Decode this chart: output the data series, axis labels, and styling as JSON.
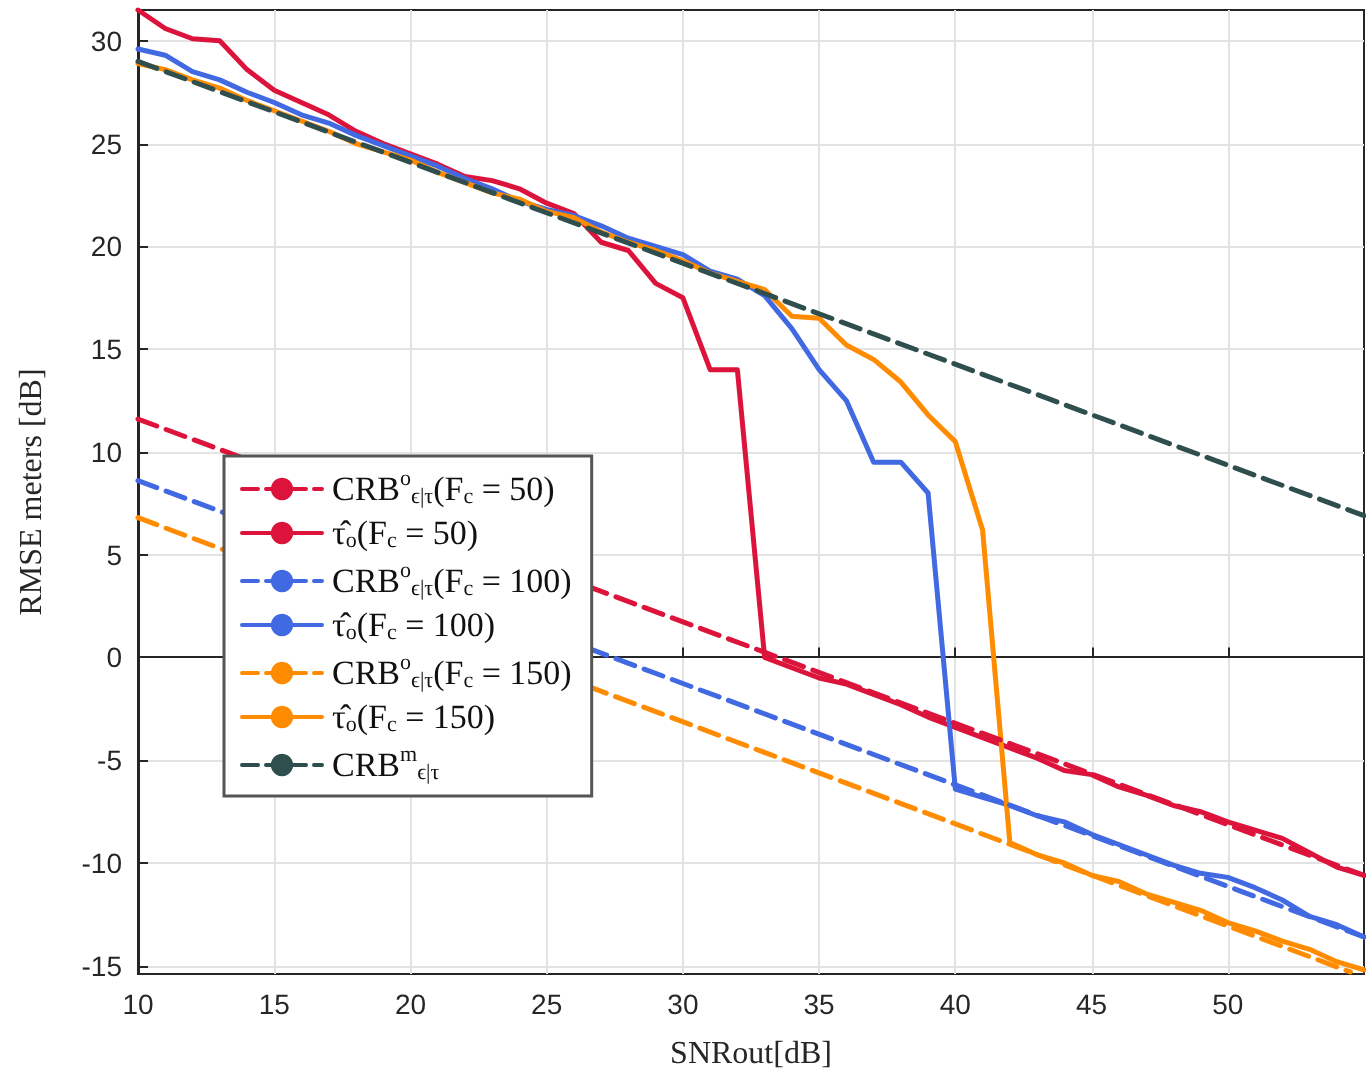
{
  "chart_data": {
    "type": "line",
    "xlabel": "SNRout[dB]",
    "ylabel": "RMSE meters [dB]",
    "xlim": [
      10,
      55
    ],
    "xticks": [
      10,
      15,
      20,
      25,
      30,
      35,
      40,
      45,
      50
    ],
    "ylim": [
      -15.4,
      31.5
    ],
    "yticks": [
      -15,
      -10,
      -5,
      0,
      5,
      10,
      15,
      20,
      25,
      30
    ],
    "grid": true,
    "legend": "left",
    "marker": "none",
    "x": [
      10,
      11,
      12,
      13,
      14,
      15,
      16,
      17,
      18,
      19,
      20,
      21,
      22,
      23,
      24,
      25,
      26,
      27,
      28,
      29,
      30,
      31,
      32,
      33,
      34,
      35,
      36,
      37,
      38,
      39,
      40,
      41,
      42,
      43,
      44,
      45,
      46,
      47,
      48,
      49,
      50,
      51,
      52,
      53,
      54,
      55
    ],
    "series": [
      {
        "name": "CRB$^{o}$$_{ϵ|τ}$(F$_{c}$ = 50)",
        "color": "#dc143c",
        "line_style": "dashed",
        "x": [
          10,
          55
        ],
        "values": [
          11.6,
          -10.6
        ]
      },
      {
        "name": "τ̂$_{o}$(F$_{c}$ = 50)",
        "color": "#dc143c",
        "line_style": "solid",
        "values": [
          31.5,
          30.6,
          30.1,
          30,
          28.6,
          27.6,
          27,
          26.4,
          25.6,
          25,
          24.5,
          24,
          23.4,
          23.2,
          22.8,
          22.1,
          21.6,
          20.2,
          19.8,
          18.2,
          17.5,
          14,
          14,
          0,
          -0.5,
          -1,
          -1.3,
          -1.8,
          -2.3,
          -2.9,
          -3.4,
          -3.9,
          -4.4,
          -4.9,
          -5.5,
          -5.7,
          -6.3,
          -6.7,
          -7.2,
          -7.5,
          -8,
          -8.4,
          -8.8,
          -9.5,
          -10.2,
          -10.6
        ]
      },
      {
        "name": "CRB$^{o}$$_{ϵ|τ}$(F$_{c}$ = 100)",
        "color": "#4169e1",
        "line_style": "dashed",
        "x": [
          10,
          55
        ],
        "values": [
          8.6,
          -13.6
        ]
      },
      {
        "name": "τ̂$_{o}$(F$_{c}$ = 100)",
        "color": "#4169e1",
        "line_style": "solid",
        "values": [
          29.6,
          29.3,
          28.5,
          28.1,
          27.5,
          27,
          26.4,
          26,
          25.4,
          24.9,
          24.4,
          23.9,
          23.3,
          22.8,
          22.2,
          21.8,
          21.5,
          21,
          20.4,
          20,
          19.6,
          18.8,
          18.4,
          17.6,
          16,
          14,
          12.5,
          9.5,
          9.5,
          8,
          -6.4,
          -6.8,
          -7.2,
          -7.7,
          -8,
          -8.6,
          -9.1,
          -9.6,
          -10.1,
          -10.5,
          -10.7,
          -11.2,
          -11.8,
          -12.6,
          -13,
          -13.6
        ]
      },
      {
        "name": "CRB$^{o}$$_{ϵ|τ}$(F$_{c}$ = 150)",
        "color": "#ff8c00",
        "line_style": "dashed",
        "x": [
          10,
          54.5
        ],
        "values": [
          6.8,
          -15.3
        ]
      },
      {
        "name": "τ̂$_{o}$(F$_{c}$ = 150)",
        "color": "#ff8c00",
        "line_style": "solid",
        "values": [
          28.9,
          28.6,
          28.1,
          27.7,
          27.1,
          26.6,
          26.1,
          25.6,
          25,
          24.6,
          24.2,
          23.6,
          23.1,
          22.6,
          22.3,
          21.7,
          21.4,
          20.7,
          20.2,
          19.8,
          19.3,
          18.7,
          18.3,
          17.9,
          16.6,
          16.5,
          15.2,
          14.5,
          13.4,
          11.8,
          10.5,
          6.2,
          -9,
          -9.6,
          -10,
          -10.6,
          -10.9,
          -11.5,
          -11.9,
          -12.3,
          -12.9,
          -13.3,
          -13.8,
          -14.2,
          -14.8,
          -15.2
        ]
      },
      {
        "name": "CRB$^{m}$$_{ϵ|τ}$",
        "color": "#2f4f4f",
        "line_style": "dashed",
        "x": [
          10,
          55
        ],
        "values": [
          29,
          6.9
        ]
      }
    ]
  }
}
